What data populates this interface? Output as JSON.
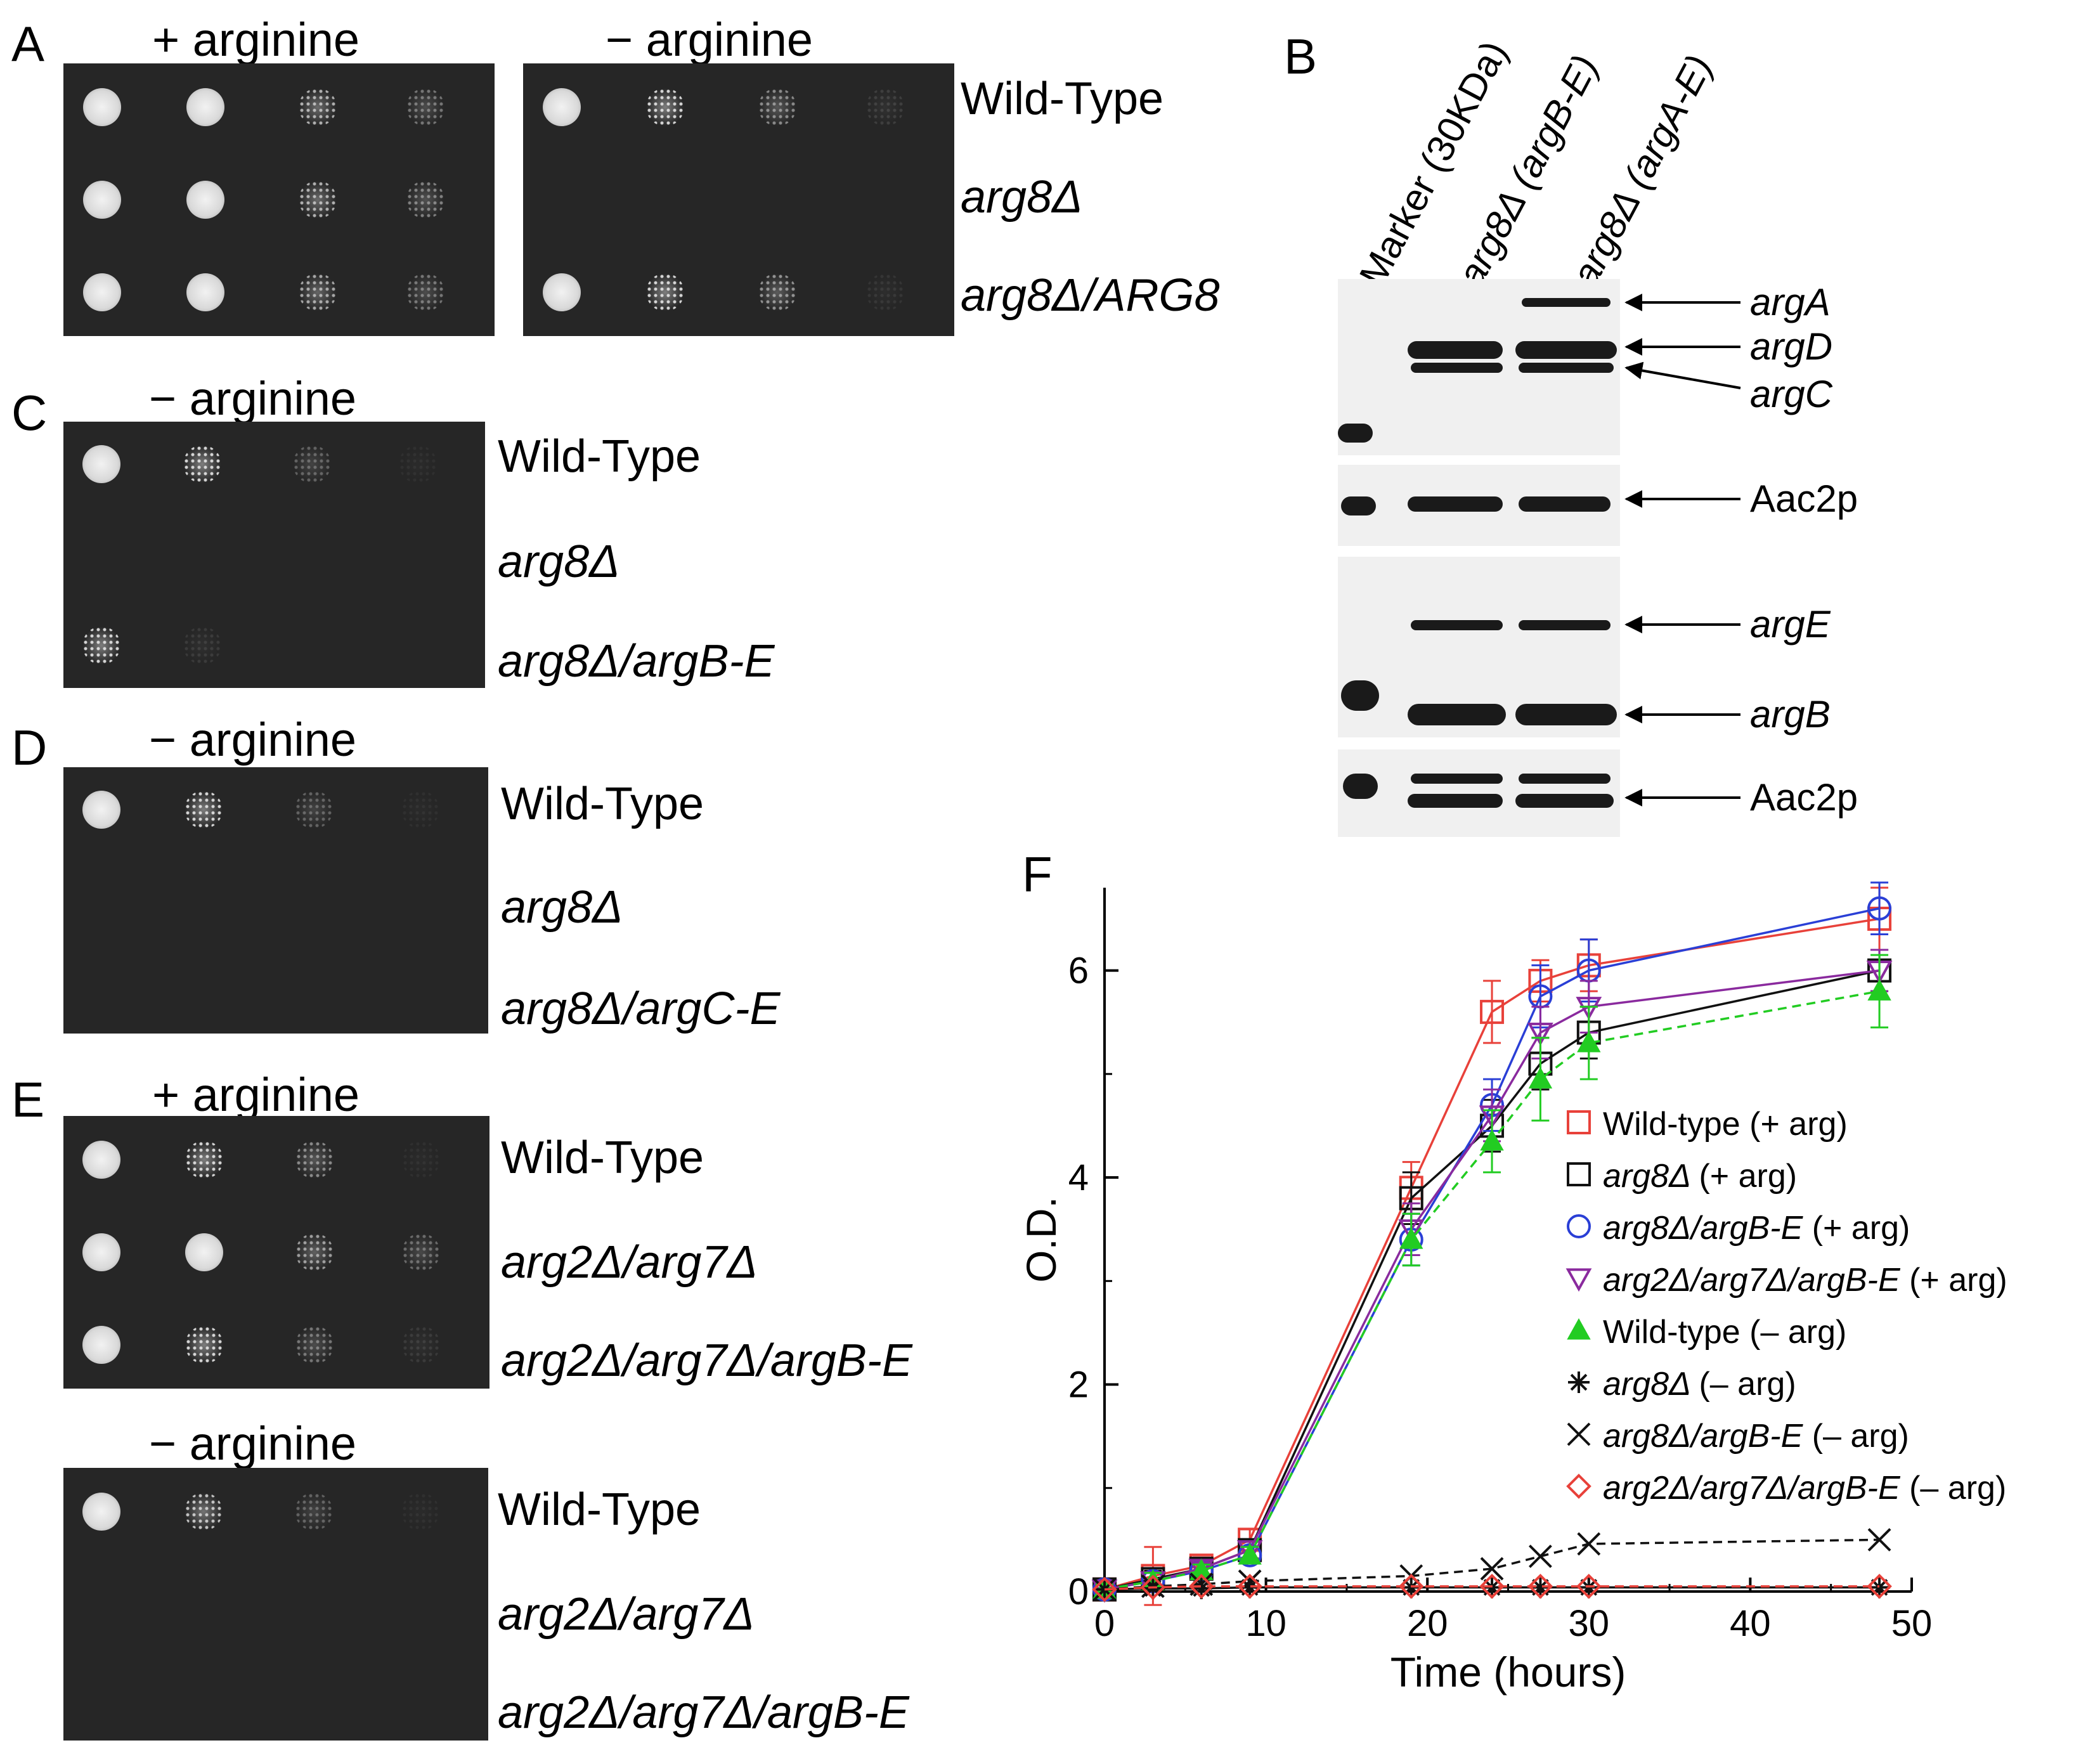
{
  "panels": {
    "A": {
      "letter": "A",
      "left_label": "+ arginine",
      "right_label": "− arginine",
      "strains": [
        "Wild-Type",
        "arg8Δ",
        "arg8Δ/ARG8"
      ],
      "growth_left": [
        [
          1,
          1,
          0.7,
          0.4
        ],
        [
          1,
          1,
          0.7,
          0.45
        ],
        [
          1,
          1,
          0.65,
          0.4
        ]
      ],
      "growth_right": [
        [
          1,
          0.9,
          0.5,
          0.12
        ],
        [
          0,
          0,
          0,
          0
        ],
        [
          1,
          0.9,
          0.55,
          0.08
        ]
      ]
    },
    "B": {
      "letter": "B",
      "lanes": [
        "Marker (30KDa)",
        "arg8Δ (argB-E)",
        "arg8Δ (argA-E)"
      ],
      "band_labels_top": [
        "argA",
        "argD",
        "argC"
      ],
      "loading_control": "Aac2p",
      "band_labels_bottom": [
        "argE",
        "argB"
      ]
    },
    "C": {
      "letter": "C",
      "label": "− arginine",
      "strains": [
        "Wild-Type",
        "arg8Δ",
        "arg8Δ/argB-E"
      ],
      "growth": [
        [
          1,
          0.9,
          0.3,
          0.05
        ],
        [
          0,
          0,
          0,
          0
        ],
        [
          0.9,
          0.1,
          0,
          0
        ]
      ]
    },
    "D": {
      "letter": "D",
      "label": "− arginine",
      "strains": [
        "Wild-Type",
        "arg8Δ",
        "arg8Δ/argC-E"
      ],
      "growth": [
        [
          1,
          0.9,
          0.3,
          0.05
        ],
        [
          0,
          0,
          0,
          0
        ],
        [
          0,
          0,
          0,
          0
        ]
      ]
    },
    "E": {
      "letter": "E",
      "top_label": "+ arginine",
      "bottom_label": "− arginine",
      "strains_top": [
        "Wild-Type",
        "arg2Δ/arg7Δ",
        "arg2Δ/arg7Δ/argB-E"
      ],
      "strains_bottom": [
        "Wild-Type",
        "arg2Δ/arg7Δ",
        "arg2Δ/arg7Δ/argB-E"
      ],
      "growth_top": [
        [
          1,
          0.9,
          0.5,
          0.05
        ],
        [
          1,
          1,
          0.6,
          0.35
        ],
        [
          1,
          0.9,
          0.4,
          0.1
        ]
      ],
      "growth_bottom": [
        [
          1,
          0.8,
          0.3,
          0.05
        ],
        [
          0,
          0,
          0,
          0
        ],
        [
          0,
          0,
          0,
          0
        ]
      ]
    },
    "F": {
      "letter": "F"
    }
  },
  "chart_data": {
    "type": "line",
    "xlabel": "Time (hours)",
    "ylabel": "O.D.",
    "xlim": [
      0,
      50
    ],
    "ylim": [
      0,
      6.8
    ],
    "xticks": [
      0,
      10,
      20,
      30,
      40,
      50
    ],
    "yticks": [
      0,
      2,
      4,
      6
    ],
    "x": [
      0,
      3,
      6,
      9,
      19,
      24,
      27,
      30,
      48
    ],
    "series": [
      {
        "name": "Wild-type (+ arg)",
        "color": "#e8413a",
        "marker": "square",
        "dash": false,
        "values": [
          0.02,
          0.15,
          0.25,
          0.5,
          3.9,
          5.6,
          5.9,
          6.05,
          6.5
        ],
        "err": [
          0.05,
          0.28,
          0.08,
          0.1,
          0.25,
          0.3,
          0.2,
          0.25,
          0.3
        ]
      },
      {
        "name": "arg8Δ (+ arg)",
        "color": "#111111",
        "marker": "square",
        "dash": false,
        "values": [
          0.02,
          0.12,
          0.22,
          0.4,
          3.8,
          4.5,
          5.1,
          5.4,
          6.0
        ],
        "err": [
          0.05,
          0.08,
          0.06,
          0.08,
          0.25,
          0.25,
          0.25,
          0.25,
          0.2
        ]
      },
      {
        "name": "arg8Δ/argB-E (+ arg)",
        "color": "#2a3fd6",
        "marker": "circle",
        "dash": false,
        "values": [
          0.02,
          0.1,
          0.2,
          0.35,
          3.4,
          4.7,
          5.75,
          6.0,
          6.6
        ],
        "err": [
          0.05,
          0.08,
          0.06,
          0.08,
          0.25,
          0.25,
          0.3,
          0.3,
          0.25
        ]
      },
      {
        "name": "arg2Δ/arg7Δ/argB-E (+ arg)",
        "color": "#8a2a9e",
        "marker": "triangle-down",
        "dash": false,
        "values": [
          0.02,
          0.1,
          0.22,
          0.4,
          3.5,
          4.6,
          5.4,
          5.65,
          6.0
        ],
        "err": [
          0.05,
          0.08,
          0.06,
          0.08,
          0.25,
          0.25,
          0.25,
          0.25,
          0.2
        ]
      },
      {
        "name": "Wild-type (– arg)",
        "color": "#22cc22",
        "marker": "triangle-up",
        "dash": true,
        "values": [
          0.02,
          0.1,
          0.2,
          0.35,
          3.4,
          4.35,
          4.95,
          5.3,
          5.8
        ],
        "err": [
          0.05,
          0.08,
          0.06,
          0.08,
          0.25,
          0.3,
          0.4,
          0.35,
          0.35
        ]
      },
      {
        "name": "arg8Δ (– arg)",
        "color": "#111111",
        "marker": "asterisk",
        "dash": false,
        "values": [
          0.02,
          0.03,
          0.03,
          0.04,
          0.04,
          0.04,
          0.04,
          0.04,
          0.04
        ],
        "err": [
          0,
          0,
          0,
          0,
          0,
          0,
          0,
          0,
          0
        ]
      },
      {
        "name": "arg8Δ/argB-E (– arg)",
        "color": "#111111",
        "marker": "x",
        "dash": true,
        "values": [
          0.02,
          0.05,
          0.07,
          0.1,
          0.15,
          0.22,
          0.34,
          0.46,
          0.5
        ],
        "err": [
          0,
          0,
          0,
          0,
          0,
          0,
          0,
          0,
          0
        ]
      },
      {
        "name": "arg2Δ/arg7Δ/argB-E (– arg)",
        "color": "#e8413a",
        "marker": "diamond",
        "dash": true,
        "values": [
          0.02,
          0.04,
          0.05,
          0.05,
          0.05,
          0.05,
          0.05,
          0.05,
          0.05
        ],
        "err": [
          0,
          0,
          0,
          0,
          0,
          0,
          0,
          0,
          0
        ]
      }
    ],
    "legend": "right"
  }
}
